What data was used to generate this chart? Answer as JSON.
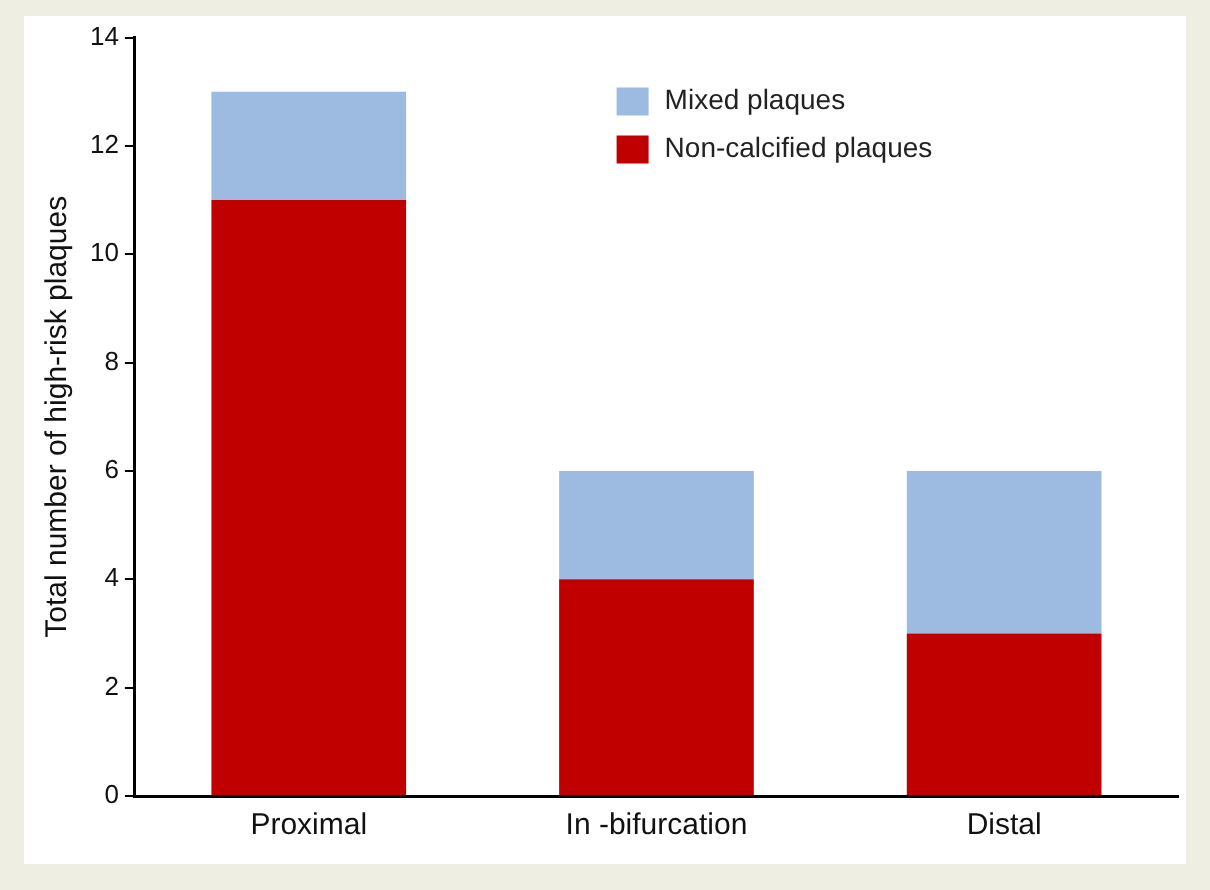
{
  "chart_data": {
    "type": "bar",
    "ylabel": "Total number of high-risk plaques",
    "categories": [
      "Proximal",
      "In -bifurcation",
      "Distal"
    ],
    "stacked": true,
    "series": [
      {
        "name": "Non-calcified plaques",
        "color": "#c00000",
        "values": [
          11,
          4,
          3
        ]
      },
      {
        "name": "Mixed plaques",
        "color": "#9dbbe0",
        "values": [
          2,
          2,
          3
        ]
      }
    ],
    "ylim": [
      0,
      14
    ],
    "yticks": [
      0,
      2,
      4,
      6,
      8,
      10,
      12,
      14
    ],
    "grid": false,
    "legend": "top"
  }
}
